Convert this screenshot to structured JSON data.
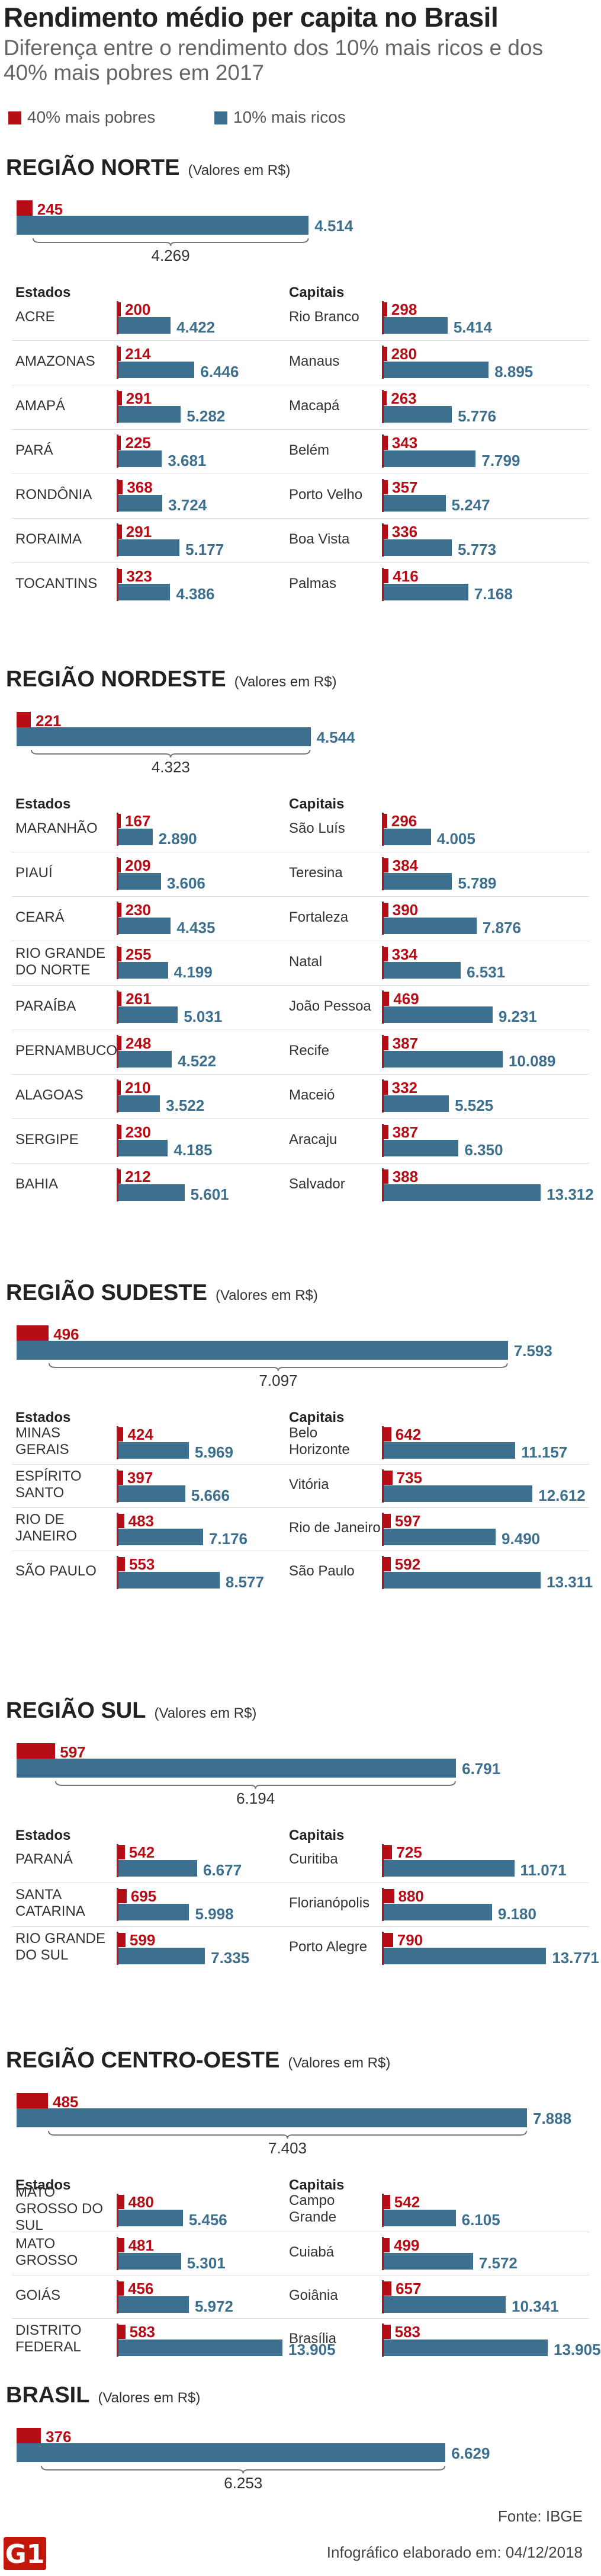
{
  "header": {
    "title": "Rendimento médio per capita no Brasil",
    "subtitle": "Diferença entre o rendimento dos 10% mais ricos e dos 40% mais pobres em 2017"
  },
  "legend": {
    "poor_label": "40% mais pobres",
    "rich_label": "10% mais ricos",
    "poor_color": "#b70d17",
    "rich_color": "#3d6f8e"
  },
  "chart_data": {
    "type": "bar",
    "scale_max": 13905,
    "units": "Valores em R$",
    "regions": [
      {
        "name": "REGIÃO NORTE",
        "unit_label": "(Valores em R$)",
        "poor": 245,
        "rich": 4514,
        "poor_label": "245",
        "rich_label": "4.514",
        "diff_label": "4.269",
        "states_header": "Estados",
        "capitals_header": "Capitais",
        "rows": [
          {
            "state": "ACRE",
            "state_poor": 200,
            "state_rich": 4422,
            "state_poor_label": "200",
            "state_rich_label": "4.422",
            "capital": "Rio Branco",
            "capital_poor": 298,
            "capital_rich": 5414,
            "capital_poor_label": "298",
            "capital_rich_label": "5.414"
          },
          {
            "state": "AMAZONAS",
            "state_poor": 214,
            "state_rich": 6446,
            "state_poor_label": "214",
            "state_rich_label": "6.446",
            "capital": "Manaus",
            "capital_poor": 280,
            "capital_rich": 8895,
            "capital_poor_label": "280",
            "capital_rich_label": "8.895"
          },
          {
            "state": "AMAPÁ",
            "state_poor": 291,
            "state_rich": 5282,
            "state_poor_label": "291",
            "state_rich_label": "5.282",
            "capital": "Macapá",
            "capital_poor": 263,
            "capital_rich": 5776,
            "capital_poor_label": "263",
            "capital_rich_label": "5.776"
          },
          {
            "state": "PARÁ",
            "state_poor": 225,
            "state_rich": 3681,
            "state_poor_label": "225",
            "state_rich_label": "3.681",
            "capital": "Belém",
            "capital_poor": 343,
            "capital_rich": 7799,
            "capital_poor_label": "343",
            "capital_rich_label": "7.799"
          },
          {
            "state": "RONDÔNIA",
            "state_poor": 368,
            "state_rich": 3724,
            "state_poor_label": "368",
            "state_rich_label": "3.724",
            "capital": "Porto Velho",
            "capital_poor": 357,
            "capital_rich": 5247,
            "capital_poor_label": "357",
            "capital_rich_label": "5.247"
          },
          {
            "state": "RORAIMA",
            "state_poor": 291,
            "state_rich": 5177,
            "state_poor_label": "291",
            "state_rich_label": "5.177",
            "capital": "Boa Vista",
            "capital_poor": 336,
            "capital_rich": 5773,
            "capital_poor_label": "336",
            "capital_rich_label": "5.773"
          },
          {
            "state": "TOCANTINS",
            "state_poor": 323,
            "state_rich": 4386,
            "state_poor_label": "323",
            "state_rich_label": "4.386",
            "capital": "Palmas",
            "capital_poor": 416,
            "capital_rich": 7168,
            "capital_poor_label": "416",
            "capital_rich_label": "7.168"
          }
        ]
      },
      {
        "name": "REGIÃO NORDESTE",
        "unit_label": "(Valores em R$)",
        "poor": 221,
        "rich": 4544,
        "poor_label": "221",
        "rich_label": "4.544",
        "diff_label": "4.323",
        "states_header": "Estados",
        "capitals_header": "Capitais",
        "rows": [
          {
            "state": "MARANHÃO",
            "state_poor": 167,
            "state_rich": 2890,
            "state_poor_label": "167",
            "state_rich_label": "2.890",
            "capital": "São Luís",
            "capital_poor": 296,
            "capital_rich": 4005,
            "capital_poor_label": "296",
            "capital_rich_label": "4.005"
          },
          {
            "state": "PIAUÍ",
            "state_poor": 209,
            "state_rich": 3606,
            "state_poor_label": "209",
            "state_rich_label": "3.606",
            "capital": "Teresina",
            "capital_poor": 384,
            "capital_rich": 5789,
            "capital_poor_label": "384",
            "capital_rich_label": "5.789"
          },
          {
            "state": "CEARÁ",
            "state_poor": 230,
            "state_rich": 4435,
            "state_poor_label": "230",
            "state_rich_label": "4.435",
            "capital": "Fortaleza",
            "capital_poor": 390,
            "capital_rich": 7876,
            "capital_poor_label": "390",
            "capital_rich_label": "7.876"
          },
          {
            "state": "RIO GRANDE DO NORTE",
            "state_poor": 255,
            "state_rich": 4199,
            "state_poor_label": "255",
            "state_rich_label": "4.199",
            "capital": "Natal",
            "capital_poor": 334,
            "capital_rich": 6531,
            "capital_poor_label": "334",
            "capital_rich_label": "6.531"
          },
          {
            "state": "PARAÍBA",
            "state_poor": 261,
            "state_rich": 5031,
            "state_poor_label": "261",
            "state_rich_label": "5.031",
            "capital": "João Pessoa",
            "capital_poor": 469,
            "capital_rich": 9231,
            "capital_poor_label": "469",
            "capital_rich_label": "9.231"
          },
          {
            "state": "PERNAMBUCO",
            "state_poor": 248,
            "state_rich": 4522,
            "state_poor_label": "248",
            "state_rich_label": "4.522",
            "capital": "Recife",
            "capital_poor": 387,
            "capital_rich": 10089,
            "capital_poor_label": "387",
            "capital_rich_label": "10.089"
          },
          {
            "state": "ALAGOAS",
            "state_poor": 210,
            "state_rich": 3522,
            "state_poor_label": "210",
            "state_rich_label": "3.522",
            "capital": "Maceió",
            "capital_poor": 332,
            "capital_rich": 5525,
            "capital_poor_label": "332",
            "capital_rich_label": "5.525"
          },
          {
            "state": "SERGIPE",
            "state_poor": 230,
            "state_rich": 4185,
            "state_poor_label": "230",
            "state_rich_label": "4.185",
            "capital": "Aracaju",
            "capital_poor": 387,
            "capital_rich": 6350,
            "capital_poor_label": "387",
            "capital_rich_label": "6.350"
          },
          {
            "state": "BAHIA",
            "state_poor": 212,
            "state_rich": 5601,
            "state_poor_label": "212",
            "state_rich_label": "5.601",
            "capital": "Salvador",
            "capital_poor": 388,
            "capital_rich": 13312,
            "capital_poor_label": "388",
            "capital_rich_label": "13.312"
          }
        ]
      },
      {
        "name": "REGIÃO SUDESTE",
        "unit_label": "(Valores em R$)",
        "poor": 496,
        "rich": 7593,
        "poor_label": "496",
        "rich_label": "7.593",
        "diff_label": "7.097",
        "states_header": "Estados",
        "capitals_header": "Capitais",
        "rows": [
          {
            "state": "MINAS GERAIS",
            "state_poor": 424,
            "state_rich": 5969,
            "state_poor_label": "424",
            "state_rich_label": "5.969",
            "capital": "Belo Horizonte",
            "capital_poor": 642,
            "capital_rich": 11157,
            "capital_poor_label": "642",
            "capital_rich_label": "11.157"
          },
          {
            "state": "ESPÍRITO SANTO",
            "state_poor": 397,
            "state_rich": 5666,
            "state_poor_label": "397",
            "state_rich_label": "5.666",
            "capital": "Vitória",
            "capital_poor": 735,
            "capital_rich": 12612,
            "capital_poor_label": "735",
            "capital_rich_label": "12.612"
          },
          {
            "state": "RIO DE JANEIRO",
            "state_poor": 483,
            "state_rich": 7176,
            "state_poor_label": "483",
            "state_rich_label": "7.176",
            "capital": "Rio de Janeiro",
            "capital_poor": 597,
            "capital_rich": 9490,
            "capital_poor_label": "597",
            "capital_rich_label": "9.490"
          },
          {
            "state": "SÃO PAULO",
            "state_poor": 553,
            "state_rich": 8577,
            "state_poor_label": "553",
            "state_rich_label": "8.577",
            "capital": "São Paulo",
            "capital_poor": 592,
            "capital_rich": 13311,
            "capital_poor_label": "592",
            "capital_rich_label": "13.311"
          }
        ]
      },
      {
        "name": "REGIÃO SUL",
        "unit_label": "(Valores em R$)",
        "poor": 597,
        "rich": 6791,
        "poor_label": "597",
        "rich_label": "6.791",
        "diff_label": "6.194",
        "states_header": "Estados",
        "capitals_header": "Capitais",
        "rows": [
          {
            "state": "PARANÁ",
            "state_poor": 542,
            "state_rich": 6677,
            "state_poor_label": "542",
            "state_rich_label": "6.677",
            "capital": "Curitiba",
            "capital_poor": 725,
            "capital_rich": 11071,
            "capital_poor_label": "725",
            "capital_rich_label": "11.071"
          },
          {
            "state": "SANTA CATARINA",
            "state_poor": 695,
            "state_rich": 5998,
            "state_poor_label": "695",
            "state_rich_label": "5.998",
            "capital": "Florianópolis",
            "capital_poor": 880,
            "capital_rich": 9180,
            "capital_poor_label": "880",
            "capital_rich_label": "9.180"
          },
          {
            "state": "RIO GRANDE DO SUL",
            "state_poor": 599,
            "state_rich": 7335,
            "state_poor_label": "599",
            "state_rich_label": "7.335",
            "capital": "Porto Alegre",
            "capital_poor": 790,
            "capital_rich": 13771,
            "capital_poor_label": "790",
            "capital_rich_label": "13.771"
          }
        ]
      },
      {
        "name": "REGIÃO CENTRO-OESTE",
        "unit_label": "(Valores em R$)",
        "poor": 485,
        "rich": 7888,
        "poor_label": "485",
        "rich_label": "7.888",
        "diff_label": "7.403",
        "states_header": "Estados",
        "capitals_header": "Capitais",
        "rows": [
          {
            "state": "MATO GROSSO DO SUL",
            "state_poor": 480,
            "state_rich": 5456,
            "state_poor_label": "480",
            "state_rich_label": "5.456",
            "capital": "Campo Grande",
            "capital_poor": 542,
            "capital_rich": 6105,
            "capital_poor_label": "542",
            "capital_rich_label": "6.105"
          },
          {
            "state": "MATO GROSSO",
            "state_poor": 481,
            "state_rich": 5301,
            "state_poor_label": "481",
            "state_rich_label": "5.301",
            "capital": "Cuiabá",
            "capital_poor": 499,
            "capital_rich": 7572,
            "capital_poor_label": "499",
            "capital_rich_label": "7.572"
          },
          {
            "state": "GOIÁS",
            "state_poor": 456,
            "state_rich": 5972,
            "state_poor_label": "456",
            "state_rich_label": "5.972",
            "capital": "Goiânia",
            "capital_poor": 657,
            "capital_rich": 10341,
            "capital_poor_label": "657",
            "capital_rich_label": "10.341"
          },
          {
            "state": "DISTRITO FEDERAL",
            "state_poor": 583,
            "state_rich": 13905,
            "state_poor_label": "583",
            "state_rich_label": "13.905",
            "capital": "Brasília",
            "capital_poor": 583,
            "capital_rich": 13905,
            "capital_poor_label": "583",
            "capital_rich_label": "13.905"
          }
        ]
      },
      {
        "name": "BRASIL",
        "unit_label": "(Valores em R$)",
        "poor": 376,
        "rich": 6629,
        "poor_label": "376",
        "rich_label": "6.629",
        "diff_label": "6.253",
        "rows": []
      }
    ]
  },
  "footer": {
    "source": "Fonte: IBGE",
    "credit": "Infográfico elaborado em: 04/12/2018",
    "logo_text": "G1"
  }
}
